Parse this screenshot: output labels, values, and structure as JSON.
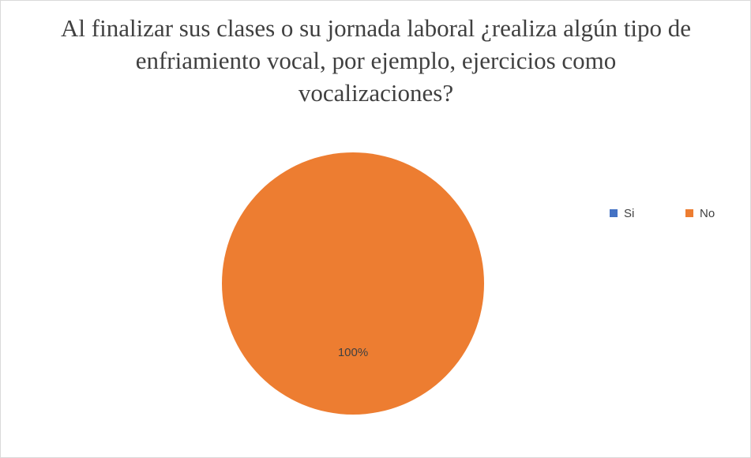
{
  "chart_data": {
    "type": "pie",
    "title": "Al finalizar sus clases o su jornada laboral ¿realiza algún tipo de enfriamiento vocal, por ejemplo, ejercicios como vocalizaciones?",
    "categories": [
      "Si",
      "No"
    ],
    "values": [
      0,
      100
    ],
    "value_labels": [
      null,
      "100%"
    ],
    "colors": [
      "#4472c4",
      "#ed7d31"
    ],
    "legend": "right"
  }
}
